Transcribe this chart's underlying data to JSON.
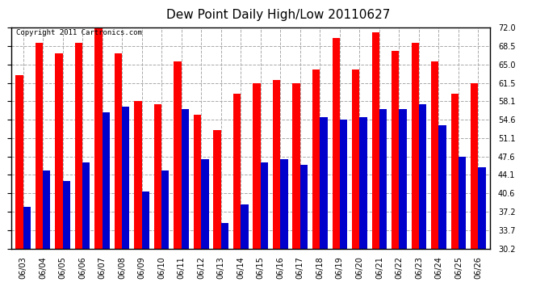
{
  "title": "Dew Point Daily High/Low 20110627",
  "copyright": "Copyright 2011 Cartronics.com",
  "dates": [
    "06/03",
    "06/04",
    "06/05",
    "06/06",
    "06/07",
    "06/08",
    "06/09",
    "06/10",
    "06/11",
    "06/12",
    "06/13",
    "06/14",
    "06/15",
    "06/16",
    "06/17",
    "06/18",
    "06/19",
    "06/20",
    "06/21",
    "06/22",
    "06/23",
    "06/24",
    "06/25",
    "06/26"
  ],
  "highs": [
    63.0,
    69.0,
    67.0,
    69.0,
    73.0,
    67.0,
    58.0,
    57.5,
    65.5,
    55.5,
    52.5,
    59.5,
    61.5,
    62.0,
    61.5,
    64.0,
    70.0,
    64.0,
    71.0,
    67.5,
    69.0,
    65.5,
    59.5,
    61.5
  ],
  "lows": [
    38.0,
    45.0,
    43.0,
    46.5,
    56.0,
    57.0,
    41.0,
    45.0,
    56.5,
    47.0,
    35.0,
    38.5,
    46.5,
    47.0,
    46.0,
    55.0,
    54.5,
    55.0,
    56.5,
    56.5,
    57.5,
    53.5,
    47.5,
    45.5
  ],
  "bar_color_high": "#ff0000",
  "bar_color_low": "#0000cc",
  "bg_color": "#ffffff",
  "plot_bg_color": "#ffffff",
  "grid_color": "#aaaaaa",
  "ymin": 30.2,
  "ymax": 72.0,
  "yticks": [
    30.2,
    33.7,
    37.2,
    40.6,
    44.1,
    47.6,
    51.1,
    54.6,
    58.1,
    61.5,
    65.0,
    68.5,
    72.0
  ],
  "title_fontsize": 11,
  "tick_fontsize": 7,
  "copyright_fontsize": 6.5
}
